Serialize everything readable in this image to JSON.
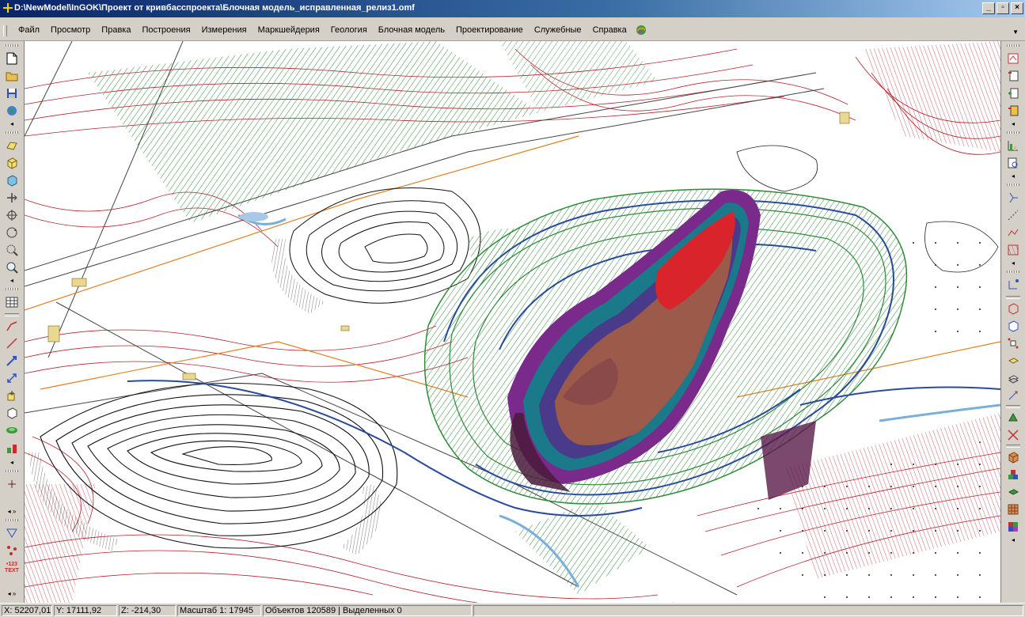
{
  "window": {
    "title": "D:\\NewModel\\InGOK\\Проект от кривбасспроекта\\Блочная модель_исправленная_релиз1.omf",
    "minimize_label": "_",
    "maximize_label": "▫",
    "close_label": "×"
  },
  "menu": {
    "items": [
      "Файл",
      "Просмотр",
      "Правка",
      "Построения",
      "Измерения",
      "Маркшейдерия",
      "Геология",
      "Блочная модель",
      "Проектирование",
      "Служебные",
      "Справка"
    ]
  },
  "left_toolbar": {
    "text_tool_label": "TEXT"
  },
  "status": {
    "x": "X: 52207,01",
    "y": "Y: 17111,92",
    "z": "Z: -214,30",
    "scale": "Масштаб 1: 17945",
    "objects": "Объектов 120589 | Выделенных 0"
  },
  "colors": {
    "title_gradient_start": "#0a246a",
    "contour_red": "#b8202a",
    "pit_green": "#2f8a3a",
    "ore_red": "#d8242a",
    "ore_brown": "#9b5a4a",
    "ore_purple": "#7a2a8a",
    "ore_teal": "#1a7a8a",
    "haul_road_blue": "#2a4a9a"
  }
}
